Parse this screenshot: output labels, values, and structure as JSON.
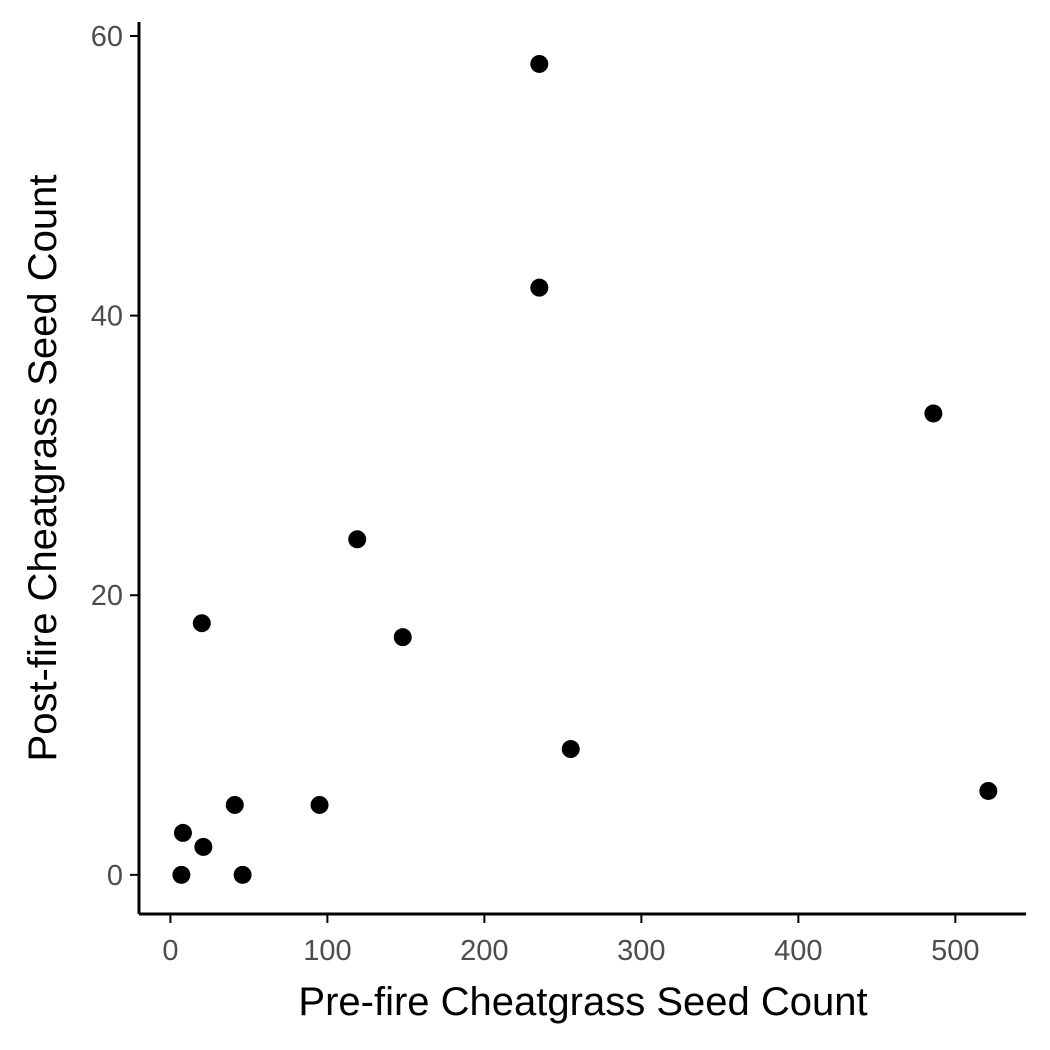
{
  "chart_data": {
    "type": "scatter",
    "title": "",
    "xlabel": "Pre-fire Cheatgrass Seed Count",
    "ylabel": "Post-fire Cheatgrass Seed Count",
    "xlim": [
      -20,
      545
    ],
    "ylim": [
      -2.8,
      61
    ],
    "xticks": [
      0,
      100,
      200,
      300,
      400,
      500
    ],
    "yticks": [
      0,
      20,
      40,
      60
    ],
    "xtick_labels": [
      "0",
      "100",
      "200",
      "300",
      "400",
      "500"
    ],
    "ytick_labels": [
      "0",
      "20",
      "40",
      "60"
    ],
    "grid": false,
    "legend": "none",
    "point_color": "#000000",
    "axis_color": "#000000",
    "tick_label_color": "#4d4d4d",
    "points": [
      {
        "x": 235,
        "y": 58
      },
      {
        "x": 235,
        "y": 42
      },
      {
        "x": 486,
        "y": 33
      },
      {
        "x": 119,
        "y": 24
      },
      {
        "x": 20,
        "y": 18
      },
      {
        "x": 148,
        "y": 17
      },
      {
        "x": 255,
        "y": 9
      },
      {
        "x": 521,
        "y": 6
      },
      {
        "x": 41,
        "y": 5
      },
      {
        "x": 95,
        "y": 5
      },
      {
        "x": 8,
        "y": 3
      },
      {
        "x": 21,
        "y": 2
      },
      {
        "x": 7,
        "y": 0
      },
      {
        "x": 46,
        "y": 0
      }
    ]
  }
}
